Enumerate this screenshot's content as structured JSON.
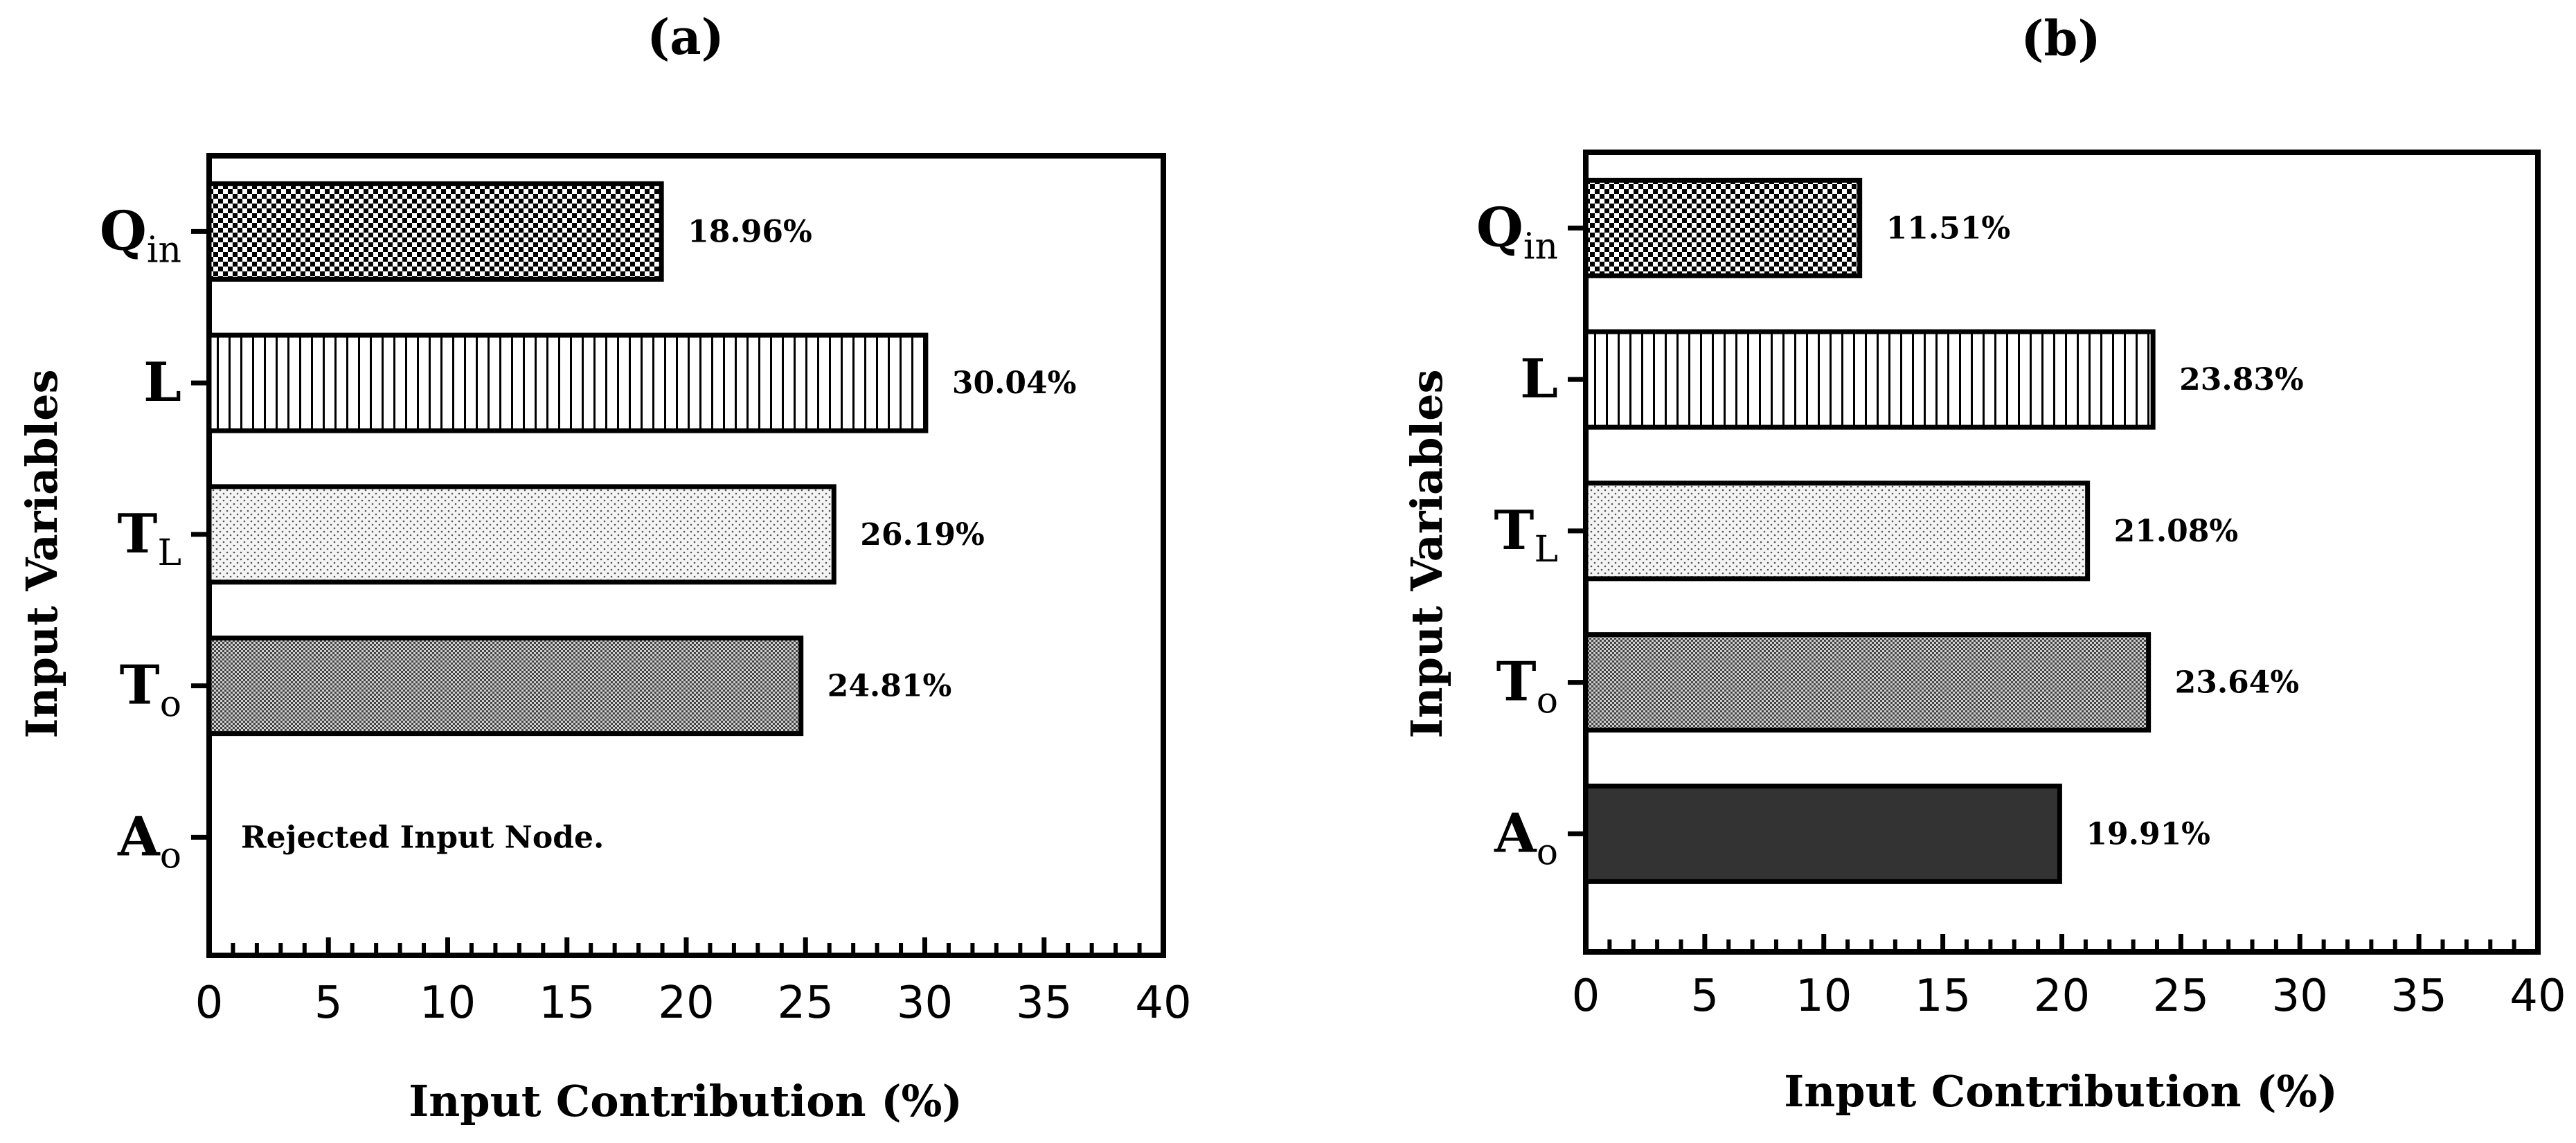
{
  "chart_data": [
    {
      "panel": "(a)",
      "type": "bar",
      "orientation": "horizontal",
      "title": "(a)",
      "xlabel": "Input Contribution (%)",
      "ylabel": "Input Variables",
      "xlim": [
        0,
        40
      ],
      "xticks": [
        "0",
        "5",
        "10",
        "15",
        "20",
        "25",
        "30",
        "35",
        "40"
      ],
      "categories": [
        {
          "main": "Q",
          "sub": "in"
        },
        {
          "main": "L",
          "sub": ""
        },
        {
          "main": "T",
          "sub": "L"
        },
        {
          "main": "T",
          "sub": "o"
        },
        {
          "main": "A",
          "sub": "o"
        }
      ],
      "values": [
        18.96,
        30.04,
        26.19,
        24.81,
        null
      ],
      "labels": [
        "18.96%",
        "30.04%",
        "26.19%",
        "24.81%",
        ""
      ],
      "patterns": [
        "checker",
        "vlines",
        "dots",
        "fine-checker",
        "solid"
      ],
      "note": "Rejected Input Node."
    },
    {
      "panel": "(b)",
      "type": "bar",
      "orientation": "horizontal",
      "title": "(b)",
      "xlabel": "Input Contribution (%)",
      "ylabel": "Input Variables",
      "xlim": [
        0,
        40
      ],
      "xticks": [
        "0",
        "5",
        "10",
        "15",
        "20",
        "25",
        "30",
        "35",
        "40"
      ],
      "categories": [
        {
          "main": "Q",
          "sub": "in"
        },
        {
          "main": "L",
          "sub": ""
        },
        {
          "main": "T",
          "sub": "L"
        },
        {
          "main": "T",
          "sub": "o"
        },
        {
          "main": "A",
          "sub": "o"
        }
      ],
      "values": [
        11.51,
        23.83,
        21.08,
        23.64,
        19.91
      ],
      "labels": [
        "11.51%",
        "23.83%",
        "21.08%",
        "23.64%",
        "19.91%"
      ],
      "patterns": [
        "checker",
        "vlines",
        "dots",
        "fine-checker",
        "solid"
      ],
      "note": ""
    }
  ],
  "colors": {
    "frame": "#000000",
    "solid_bar": "#333333",
    "dots_bg": "#f4f4f4"
  }
}
